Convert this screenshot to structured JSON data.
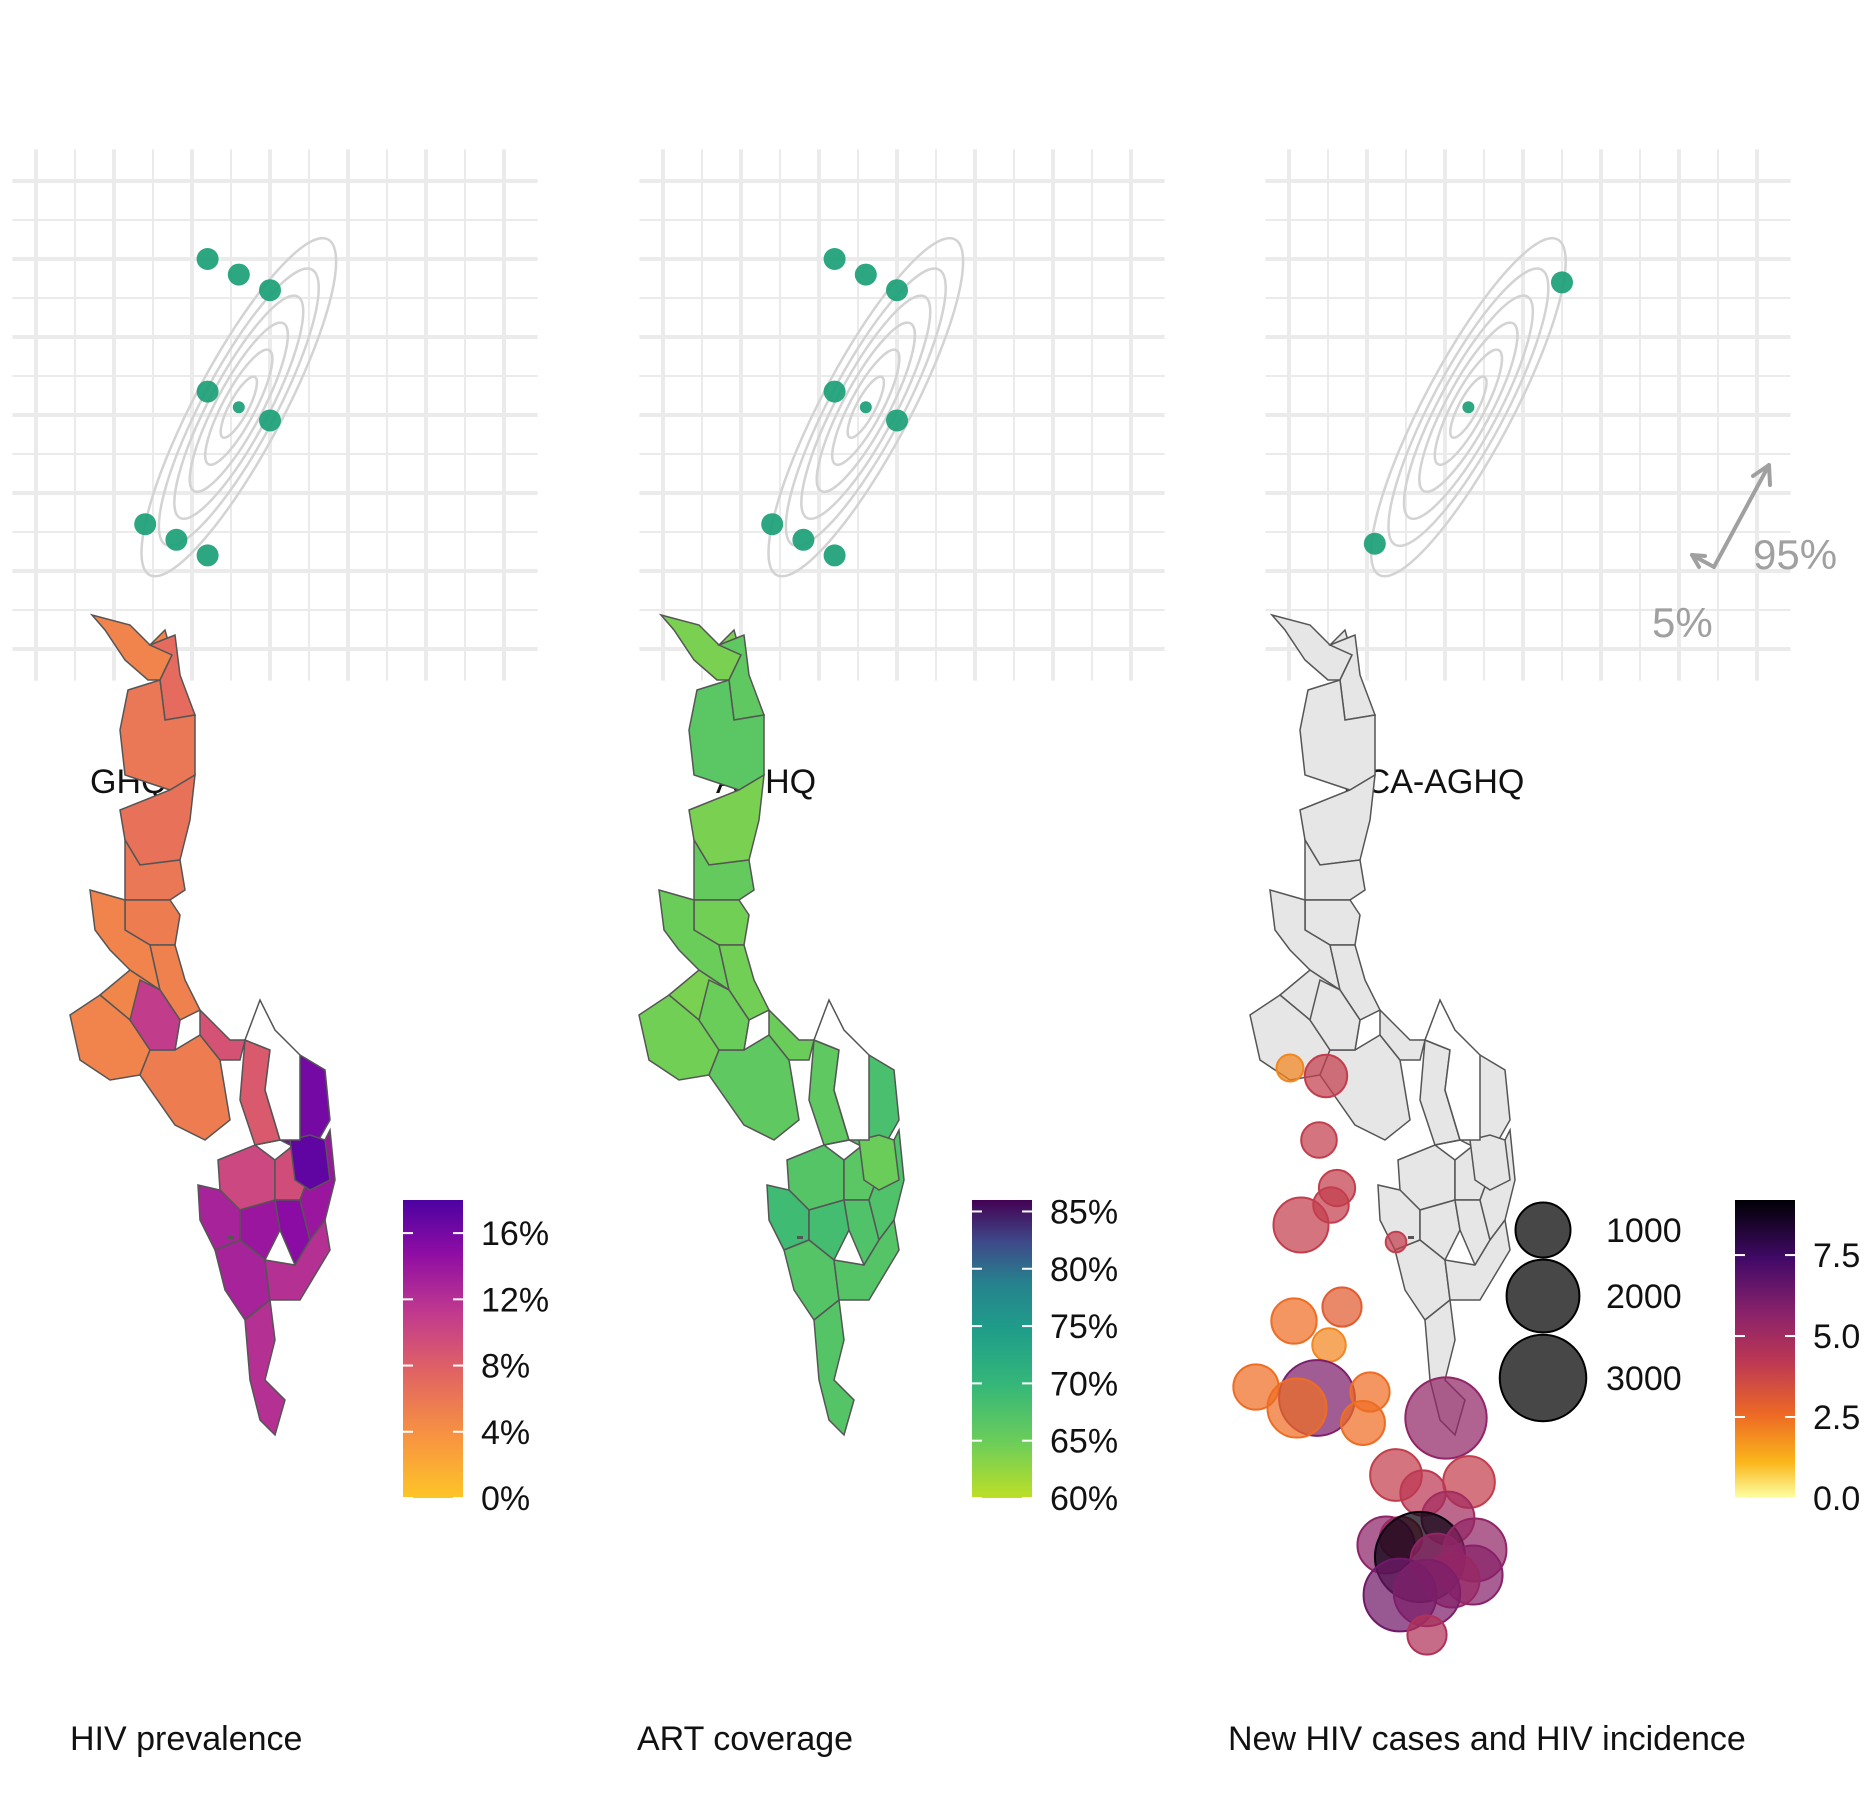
{
  "figure": {
    "panels": {
      "ghq": {
        "title": "GHQ"
      },
      "aghq": {
        "title": "AGHQ"
      },
      "pca_aghq": {
        "title": "PCA-AGHQ",
        "arrow_labels": {
          "minor": "5%",
          "major": "95%"
        }
      },
      "hiv_prevalence": {
        "title": "HIV prevalence"
      },
      "art_coverage": {
        "title": "ART coverage"
      },
      "new_cases": {
        "title": "New HIV cases and HIV incidence"
      }
    },
    "colors": {
      "node": "#1b9e77",
      "contour": "#d3d3d3",
      "grid": "#ebebeb",
      "map_background": "#e6e6e6",
      "district_border": "#555555"
    }
  },
  "chart_data": [
    {
      "type": "scatter",
      "panel": "GHQ",
      "title": "GHQ",
      "xlim": [
        -3.2,
        3.2
      ],
      "ylim": [
        -3.2,
        3.2
      ],
      "points": [
        {
          "x": -0.8,
          "y": 2.0,
          "weight": "large"
        },
        {
          "x": -0.4,
          "y": 1.8,
          "weight": "large"
        },
        {
          "x": 0.0,
          "y": 1.6,
          "weight": "large"
        },
        {
          "x": -0.8,
          "y": 0.3,
          "weight": "large"
        },
        {
          "x": -0.4,
          "y": 0.1,
          "weight": "small"
        },
        {
          "x": 0.0,
          "y": -0.07,
          "weight": "large"
        },
        {
          "x": -1.6,
          "y": -1.4,
          "weight": "large"
        },
        {
          "x": -1.2,
          "y": -1.6,
          "weight": "large"
        },
        {
          "x": -0.8,
          "y": -1.8,
          "weight": "large"
        }
      ],
      "gridlines": true
    },
    {
      "type": "scatter",
      "panel": "AGHQ",
      "title": "AGHQ",
      "xlim": [
        -3.2,
        3.2
      ],
      "ylim": [
        -3.2,
        3.2
      ],
      "points": [
        {
          "x": -0.8,
          "y": 2.0,
          "weight": "large"
        },
        {
          "x": -0.4,
          "y": 1.8,
          "weight": "large"
        },
        {
          "x": 0.0,
          "y": 1.6,
          "weight": "large"
        },
        {
          "x": -0.8,
          "y": 0.3,
          "weight": "large"
        },
        {
          "x": -0.4,
          "y": 0.1,
          "weight": "small"
        },
        {
          "x": 0.0,
          "y": -0.07,
          "weight": "large"
        },
        {
          "x": -1.6,
          "y": -1.4,
          "weight": "large"
        },
        {
          "x": -1.2,
          "y": -1.6,
          "weight": "large"
        },
        {
          "x": -0.8,
          "y": -1.8,
          "weight": "large"
        }
      ],
      "gridlines": true
    },
    {
      "type": "scatter",
      "panel": "PCA-AGHQ",
      "title": "PCA-AGHQ",
      "xlim": [
        -3.2,
        3.2
      ],
      "ylim": [
        -3.2,
        3.2
      ],
      "points": [
        {
          "x": 0.5,
          "y": 1.7,
          "weight": "large"
        },
        {
          "x": -0.7,
          "y": 0.1,
          "weight": "small"
        },
        {
          "x": -1.9,
          "y": -1.65,
          "weight": "large"
        }
      ],
      "annotations": [
        "5%",
        "95%"
      ],
      "gridlines": true
    },
    {
      "type": "heatmap",
      "panel": "HIV prevalence",
      "title": "HIV prevalence",
      "legend": {
        "ticks": [
          "0%",
          "4%",
          "8%",
          "12%",
          "16%"
        ],
        "range": [
          0,
          0.18
        ]
      },
      "regions": [
        0.05,
        0.07,
        0.06,
        0.065,
        0.06,
        0.055,
        0.05,
        0.052,
        0.048,
        0.05,
        0.055,
        0.11,
        0.09,
        0.1,
        0.085,
        0.095,
        0.13,
        0.14,
        0.15,
        0.16,
        0.14,
        0.13,
        0.12,
        0.17,
        0.12
      ]
    },
    {
      "type": "heatmap",
      "panel": "ART coverage",
      "title": "ART coverage",
      "legend": {
        "ticks": [
          "60%",
          "65%",
          "70%",
          "75%",
          "80%",
          "85%"
        ],
        "range": [
          0.6,
          0.86
        ]
      },
      "regions": [
        0.64,
        0.66,
        0.665,
        0.64,
        0.655,
        0.645,
        0.65,
        0.645,
        0.64,
        0.645,
        0.66,
        0.65,
        0.65,
        0.67,
        0.66,
        0.665,
        0.69,
        0.685,
        0.675,
        0.68,
        0.675,
        0.67,
        0.67,
        0.65,
        0.67
      ]
    },
    {
      "type": "scatter",
      "panel": "New HIV cases and HIV incidence",
      "title": "New HIV cases and HIV incidence",
      "size_legend": {
        "values": [
          1000,
          2000,
          3000
        ],
        "labels": [
          "1000",
          "2000",
          "3000"
        ]
      },
      "color_legend": {
        "ticks": [
          "0.0",
          "2.5",
          "5.0",
          "7.5"
        ],
        "range": [
          0,
          9.2
        ]
      },
      "points": [
        {
          "district": 1,
          "cases": 120,
          "incidence": 2.0
        },
        {
          "district": 2,
          "cases": 500,
          "incidence": 4.0
        },
        {
          "district": 3,
          "cases": 300,
          "incidence": 4.0
        },
        {
          "district": 4,
          "cases": 320,
          "incidence": 4.0
        },
        {
          "district": 5,
          "cases": 300,
          "incidence": 4.0
        },
        {
          "district": 6,
          "cases": 1000,
          "incidence": 4.0
        },
        {
          "district": 7,
          "cases": 40,
          "incidence": 4.0
        },
        {
          "district": 8,
          "cases": 400,
          "incidence": 3.0
        },
        {
          "district": 9,
          "cases": 600,
          "incidence": 2.5
        },
        {
          "district": 10,
          "cases": 250,
          "incidence": 2.0
        },
        {
          "district": 11,
          "cases": 600,
          "incidence": 2.5
        },
        {
          "district": 12,
          "cases": 2200,
          "incidence": 6.0
        },
        {
          "district": 13,
          "cases": 1200,
          "incidence": 2.5
        },
        {
          "district": 14,
          "cases": 400,
          "incidence": 2.5
        },
        {
          "district": 15,
          "cases": 550,
          "incidence": 2.5
        },
        {
          "district": 16,
          "cases": 2600,
          "incidence": 5.5
        },
        {
          "district": 17,
          "cases": 850,
          "incidence": 4.0
        },
        {
          "district": 18,
          "cases": 850,
          "incidence": 4.0
        },
        {
          "district": 19,
          "cases": 600,
          "incidence": 4.2
        },
        {
          "district": 20,
          "cases": 900,
          "incidence": 5.0
        },
        {
          "district": 21,
          "cases": 500,
          "incidence": 4.0
        },
        {
          "district": 22,
          "cases": 1100,
          "incidence": 5.6
        },
        {
          "district": 23,
          "cases": 3300,
          "incidence": 9.0
        },
        {
          "district": 24,
          "cases": 1400,
          "incidence": 5.5
        },
        {
          "district": 25,
          "cases": 1200,
          "incidence": 5.8
        },
        {
          "district": 26,
          "cases": 1000,
          "incidence": 5.3
        },
        {
          "district": 27,
          "cases": 900,
          "incidence": 5.5
        },
        {
          "district": 28,
          "cases": 2000,
          "incidence": 6.3
        },
        {
          "district": 29,
          "cases": 1600,
          "incidence": 6.0
        },
        {
          "district": 30,
          "cases": 400,
          "incidence": 4.6
        }
      ]
    }
  ]
}
